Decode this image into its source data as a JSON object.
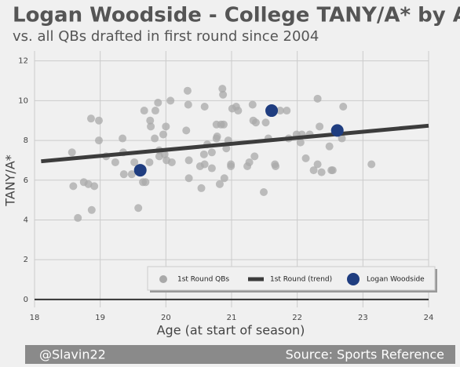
{
  "chart_data": {
    "type": "scatter",
    "title": "Logan Woodside - College TANY/A* by Age",
    "subtitle": "vs. all QBs drafted in first round since 2004",
    "x_label": "Age (at start of season)",
    "y_label": "TANY/A*",
    "xlim": [
      18,
      24
    ],
    "ylim": [
      -0.4,
      12.5
    ],
    "xticks": [
      18,
      19,
      20,
      21,
      22,
      23,
      24
    ],
    "yticks": [
      0,
      2,
      4,
      6,
      8,
      10,
      12
    ],
    "grid": true,
    "series": [
      {
        "name": "1st Round QBs",
        "type": "scatter",
        "color": "#a9a9a9",
        "x": [
          18.57,
          18.59,
          18.66,
          18.75,
          18.82,
          18.86,
          18.87,
          18.91,
          18.98,
          18.98,
          19.09,
          19.23,
          19.34,
          19.35,
          19.36,
          19.48,
          19.52,
          19.58,
          19.65,
          19.69,
          19.67,
          19.75,
          19.76,
          19.77,
          19.83,
          19.84,
          19.88,
          19.9,
          19.9,
          19.96,
          19.98,
          20.0,
          20.01,
          20.07,
          20.09,
          20.31,
          20.33,
          20.34,
          20.35,
          20.35,
          20.52,
          20.54,
          20.58,
          20.59,
          20.59,
          20.63,
          20.7,
          20.7,
          20.77,
          20.77,
          20.78,
          20.82,
          20.84,
          20.86,
          20.88,
          20.87,
          20.89,
          20.92,
          20.95,
          20.99,
          20.99,
          21.01,
          21.07,
          21.1,
          21.24,
          21.27,
          21.32,
          21.33,
          21.35,
          21.37,
          21.49,
          21.52,
          21.56,
          21.58,
          21.66,
          21.67,
          21.74,
          21.84,
          21.87,
          21.99,
          22.05,
          22.07,
          22.13,
          22.19,
          22.25,
          22.31,
          22.31,
          22.34,
          22.37,
          22.49,
          22.52,
          22.54,
          22.68,
          22.7,
          23.13
        ],
        "values": [
          7.4,
          5.7,
          4.1,
          5.9,
          5.8,
          9.1,
          4.5,
          5.7,
          9.0,
          8.0,
          7.2,
          6.9,
          8.1,
          7.4,
          6.3,
          6.3,
          6.9,
          4.6,
          5.9,
          5.9,
          9.5,
          6.9,
          9.0,
          8.7,
          8.1,
          9.5,
          9.9,
          7.5,
          7.2,
          8.3,
          7.3,
          8.7,
          7.0,
          10.0,
          6.9,
          8.5,
          10.5,
          9.8,
          7.0,
          6.1,
          6.7,
          5.6,
          7.3,
          9.7,
          6.8,
          7.8,
          7.4,
          6.6,
          8.8,
          8.1,
          8.2,
          5.8,
          8.8,
          10.6,
          8.8,
          10.3,
          6.1,
          7.6,
          8.0,
          6.7,
          6.8,
          9.6,
          9.7,
          9.5,
          6.7,
          6.9,
          9.8,
          9.0,
          7.2,
          8.9,
          5.4,
          8.9,
          8.1,
          9.4,
          6.8,
          6.7,
          9.5,
          9.5,
          8.1,
          8.3,
          7.9,
          8.3,
          7.1,
          8.3,
          6.5,
          6.8,
          10.1,
          8.7,
          6.4,
          7.7,
          6.5,
          6.5,
          8.1,
          9.7,
          6.8
        ]
      },
      {
        "name": "1st Round (trend)",
        "type": "line",
        "color": "#3c3c3c",
        "x": [
          18.1,
          24
        ],
        "values": [
          6.95,
          8.74
        ]
      },
      {
        "name": "Logan Woodside",
        "type": "scatter",
        "color": "#1f3d80",
        "x": [
          19.61,
          21.61,
          22.61
        ],
        "values": [
          6.5,
          9.5,
          8.5
        ]
      }
    ]
  },
  "footer": {
    "left": "@Slavin22",
    "right": "Source: Sports Reference"
  }
}
